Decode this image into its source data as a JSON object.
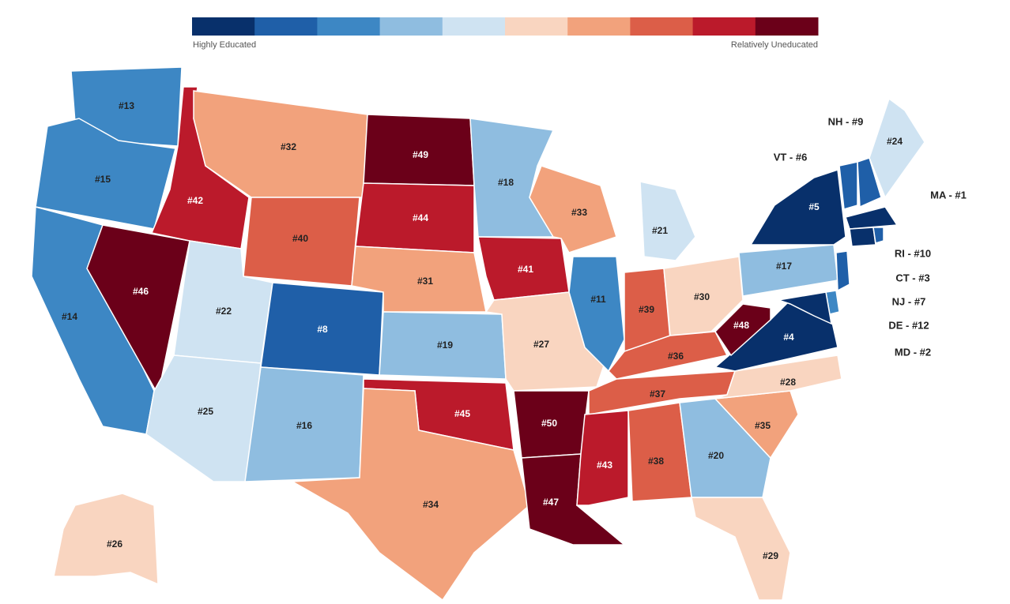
{
  "legend": {
    "colors": [
      "#08306b",
      "#1f5fa8",
      "#3d87c4",
      "#8fbde0",
      "#cfe3f2",
      "#f9d5c0",
      "#f2a27c",
      "#dc5e48",
      "#bb1a2b",
      "#6b0019"
    ],
    "left_label": "Highly Educated",
    "right_label": "Relatively Uneducated"
  },
  "states": [
    {
      "label": "#13",
      "color": "#3d87c4"
    },
    {
      "label": "#15",
      "color": "#3d87c4"
    },
    {
      "label": "#14",
      "color": "#3d87c4"
    },
    {
      "label": "#46",
      "color": "#6b0019"
    },
    {
      "label": "#42",
      "color": "#bb1a2b"
    },
    {
      "label": "#32",
      "color": "#f2a27c"
    },
    {
      "label": "#40",
      "color": "#dc5e48"
    },
    {
      "label": "#22",
      "color": "#cfe3f2"
    },
    {
      "label": "#25",
      "color": "#cfe3f2"
    },
    {
      "label": "#8",
      "color": "#1f5fa8"
    },
    {
      "label": "#16",
      "color": "#8fbde0"
    },
    {
      "label": "#49",
      "color": "#6b0019"
    },
    {
      "label": "#44",
      "color": "#bb1a2b"
    },
    {
      "label": "#31",
      "color": "#f2a27c"
    },
    {
      "label": "#19",
      "color": "#8fbde0"
    },
    {
      "label": "#45",
      "color": "#bb1a2b"
    },
    {
      "label": "#34",
      "color": "#f2a27c"
    },
    {
      "label": "#18",
      "color": "#8fbde0"
    },
    {
      "label": "#41",
      "color": "#bb1a2b"
    },
    {
      "label": "#27",
      "color": "#f9d5c0"
    },
    {
      "label": "#50",
      "color": "#6b0019"
    },
    {
      "label": "#47",
      "color": "#6b0019"
    },
    {
      "label": "#33",
      "color": "#f2a27c"
    },
    {
      "label": "#21",
      "color": "#cfe3f2"
    },
    {
      "label": "#11",
      "color": "#3d87c4"
    },
    {
      "label": "#39",
      "color": "#dc5e48"
    },
    {
      "label": "#30",
      "color": "#f9d5c0"
    },
    {
      "label": "#36",
      "color": "#dc5e48"
    },
    {
      "label": "#37",
      "color": "#dc5e48"
    },
    {
      "label": "#43",
      "color": "#bb1a2b"
    },
    {
      "label": "#38",
      "color": "#dc5e48"
    },
    {
      "label": "#20",
      "color": "#8fbde0"
    },
    {
      "label": "#29",
      "color": "#f9d5c0"
    },
    {
      "label": "#35",
      "color": "#f2a27c"
    },
    {
      "label": "#28",
      "color": "#f9d5c0"
    },
    {
      "label": "#4",
      "color": "#08306b"
    },
    {
      "label": "#48",
      "color": "#6b0019"
    },
    {
      "label": "#17",
      "color": "#8fbde0"
    },
    {
      "label": "#5",
      "color": "#08306b"
    },
    {
      "label": "#24",
      "color": "#cfe3f2"
    },
    {
      "label": "#26",
      "color": "#f9d5c0"
    },
    {
      "label": "VT - #6",
      "color": "#1f5fa8"
    },
    {
      "label": "NH - #9",
      "color": "#1f5fa8"
    },
    {
      "label": "MA - #1",
      "color": "#08306b"
    },
    {
      "label": "CT - #3",
      "color": "#08306b"
    },
    {
      "label": "RI - #10",
      "color": "#1f5fa8"
    },
    {
      "label": "NJ - #7",
      "color": "#1f5fa8"
    },
    {
      "label": "DE - #12",
      "color": "#3d87c4"
    },
    {
      "label": "MD - #2",
      "color": "#08306b"
    }
  ]
}
